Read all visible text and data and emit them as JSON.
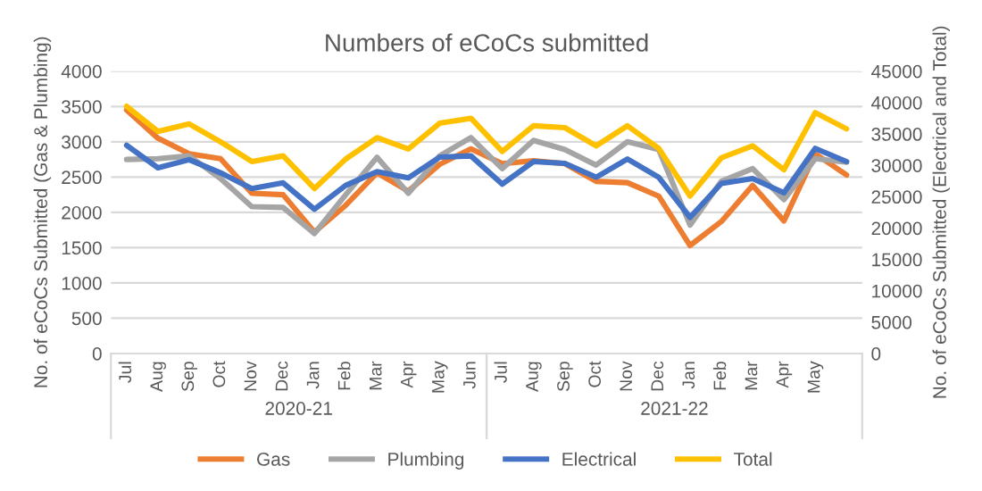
{
  "chart_data": {
    "type": "line",
    "title": "Numbers of eCoCs submitted",
    "ylabel": "No. of eCoCs Submitted (Gas & Plumbing)",
    "y2label": "No. of eCoCs Submitted (Electrical and Total)",
    "categories": [
      "Jul",
      "Aug",
      "Sep",
      "Oct",
      "Nov",
      "Dec",
      "Jan",
      "Feb",
      "Mar",
      "Apr",
      "May",
      "Jun",
      "Jul",
      "Aug",
      "Sep",
      "Oct",
      "Nov",
      "Dec",
      "Jan",
      "Feb",
      "Mar",
      "Apr",
      "May",
      null
    ],
    "annotations": [
      "2020-21",
      "2021-22"
    ],
    "series": [
      {
        "name": "Gas",
        "color": "#ed7d31",
        "values": [
          3450,
          3050,
          2830,
          2760,
          2270,
          2250,
          1720,
          2100,
          2560,
          2300,
          2680,
          2900,
          2690,
          2730,
          2690,
          2440,
          2420,
          2230,
          1530,
          1870,
          2380,
          1880,
          2830,
          2530
        ]
      },
      {
        "name": "Plumbing",
        "color": "#a5a5a5",
        "values": [
          2750,
          2760,
          2800,
          2480,
          2080,
          2070,
          1700,
          2250,
          2780,
          2270,
          2800,
          3060,
          2620,
          3020,
          2890,
          2670,
          3000,
          2890,
          1820,
          2440,
          2620,
          2180,
          2760,
          2710
        ]
      },
      {
        "name": "Electrical",
        "color": "#4472c4",
        "axis": "y2",
        "values": [
          33200,
          29600,
          30900,
          28800,
          26300,
          27200,
          23000,
          26800,
          29000,
          28000,
          31300,
          31500,
          27000,
          30600,
          30300,
          28100,
          31000,
          28100,
          21700,
          27100,
          27900,
          25600,
          32700,
          30600
        ]
      },
      {
        "name": "Total",
        "color": "#ffc000",
        "axis": "y2",
        "values": [
          39400,
          35400,
          36600,
          33750,
          30600,
          31500,
          26300,
          31000,
          34400,
          32600,
          36700,
          37500,
          32200,
          36300,
          36000,
          33100,
          36300,
          32700,
          25100,
          31200,
          33100,
          29300,
          38400,
          35800
        ]
      }
    ],
    "ylim": [
      0,
      4000
    ],
    "yticks": [
      0,
      500,
      1000,
      1500,
      2000,
      2500,
      3000,
      3500,
      4000
    ],
    "y2lim": [
      0,
      45000
    ],
    "y2ticks": [
      0,
      5000,
      10000,
      15000,
      20000,
      25000,
      30000,
      35000,
      40000,
      45000
    ],
    "grid": "y",
    "legend": "bottom",
    "marker": "none",
    "line_style": "solid"
  }
}
